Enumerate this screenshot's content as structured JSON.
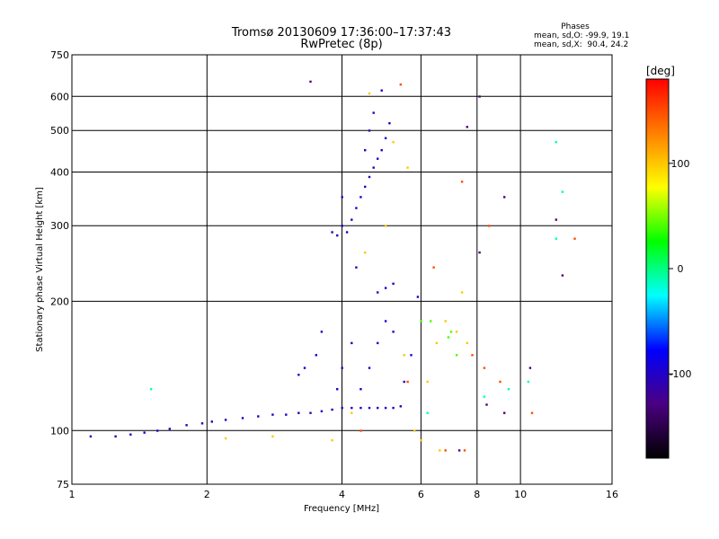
{
  "chart_data": {
    "type": "scatter",
    "title": "Tromsø 20130609 17:36:00–17:37:43",
    "subtitle": "RwPretec (8p)",
    "xlabel": "Frequency [MHz]",
    "ylabel": "Stationary phase Virtual Height [km]",
    "x_scale": "log",
    "y_scale": "log",
    "xlim": [
      1,
      16
    ],
    "ylim": [
      75,
      750
    ],
    "x_ticks": [
      1,
      2,
      4,
      6,
      8,
      10,
      16
    ],
    "y_ticks": [
      75,
      100,
      200,
      300,
      400,
      500,
      600,
      750
    ],
    "grid": true,
    "phases_box": {
      "title": "Phases",
      "line_o": "mean, sd,O: -99.9, 19.1",
      "line_x": "mean, sd,X:  90.4, 24.2"
    },
    "colorbar": {
      "label": "[deg]",
      "range": [
        -180,
        180
      ],
      "ticks": [
        100,
        0,
        -100
      ],
      "colors": [
        "#000000",
        "#4b0082",
        "#0000ff",
        "#00ffff",
        "#00ff00",
        "#ffff00",
        "#ff8000",
        "#ff0000"
      ]
    },
    "series": [
      {
        "phase_deg": -100,
        "points": [
          [
            1.1,
            97
          ],
          [
            1.25,
            97
          ],
          [
            1.35,
            98
          ],
          [
            1.45,
            99
          ],
          [
            1.55,
            100
          ],
          [
            1.65,
            101
          ],
          [
            1.8,
            103
          ],
          [
            1.95,
            104
          ],
          [
            2.05,
            105
          ],
          [
            2.2,
            106
          ],
          [
            2.4,
            107
          ],
          [
            2.6,
            108
          ],
          [
            2.8,
            109
          ],
          [
            3.0,
            109
          ],
          [
            3.2,
            110
          ],
          [
            3.4,
            110
          ],
          [
            3.6,
            111
          ],
          [
            3.8,
            112
          ],
          [
            4.0,
            113
          ],
          [
            4.2,
            113
          ],
          [
            4.4,
            113
          ],
          [
            4.6,
            113
          ],
          [
            4.8,
            113
          ],
          [
            5.0,
            113
          ],
          [
            5.2,
            113
          ],
          [
            5.4,
            114
          ],
          [
            3.2,
            135
          ],
          [
            3.3,
            140
          ],
          [
            3.5,
            150
          ],
          [
            3.6,
            170
          ],
          [
            3.9,
            125
          ],
          [
            4.0,
            140
          ],
          [
            4.2,
            160
          ],
          [
            4.4,
            125
          ],
          [
            4.6,
            140
          ],
          [
            4.8,
            160
          ],
          [
            5.0,
            180
          ],
          [
            5.2,
            170
          ],
          [
            5.5,
            130
          ],
          [
            5.7,
            150
          ],
          [
            3.8,
            290
          ],
          [
            3.9,
            285
          ],
          [
            4.0,
            300
          ],
          [
            4.1,
            290
          ],
          [
            4.2,
            310
          ],
          [
            4.3,
            330
          ],
          [
            4.4,
            350
          ],
          [
            4.5,
            370
          ],
          [
            4.6,
            390
          ],
          [
            4.7,
            410
          ],
          [
            4.8,
            430
          ],
          [
            4.9,
            450
          ],
          [
            5.0,
            480
          ],
          [
            5.1,
            520
          ],
          [
            4.0,
            350
          ],
          [
            4.5,
            450
          ],
          [
            4.8,
            210
          ],
          [
            5.0,
            215
          ],
          [
            4.3,
            240
          ],
          [
            4.9,
            620
          ],
          [
            4.7,
            550
          ],
          [
            4.6,
            500
          ],
          [
            5.2,
            220
          ],
          [
            5.9,
            205
          ]
        ]
      },
      {
        "phase_deg": 100,
        "points": [
          [
            4.6,
            610
          ],
          [
            5.2,
            470
          ],
          [
            5.6,
            410
          ],
          [
            4.5,
            260
          ],
          [
            5.0,
            300
          ],
          [
            5.5,
            150
          ],
          [
            6.2,
            130
          ],
          [
            6.5,
            160
          ],
          [
            6.8,
            180
          ],
          [
            7.2,
            170
          ],
          [
            7.6,
            160
          ],
          [
            7.4,
            210
          ],
          [
            6.0,
            95
          ],
          [
            6.6,
            90
          ],
          [
            3.8,
            95
          ],
          [
            5.8,
            100
          ],
          [
            4.2,
            110
          ],
          [
            2.2,
            96
          ],
          [
            2.8,
            97
          ]
        ]
      },
      {
        "phase_deg": 40,
        "points": [
          [
            6.3,
            180
          ],
          [
            7.0,
            170
          ],
          [
            7.2,
            150
          ],
          [
            6.9,
            165
          ],
          [
            6.0,
            180
          ]
        ]
      },
      {
        "phase_deg": 150,
        "points": [
          [
            6.4,
            240
          ],
          [
            7.8,
            150
          ],
          [
            8.3,
            140
          ],
          [
            9.0,
            130
          ],
          [
            10.6,
            110
          ],
          [
            7.5,
            90
          ],
          [
            8.5,
            300
          ],
          [
            13.2,
            280
          ],
          [
            6.8,
            90
          ],
          [
            7.4,
            380
          ],
          [
            5.6,
            130
          ],
          [
            4.4,
            100
          ],
          [
            5.4,
            640
          ]
        ]
      },
      {
        "phase_deg": -10,
        "points": [
          [
            12.0,
            470
          ],
          [
            12.4,
            360
          ],
          [
            12.0,
            280
          ],
          [
            8.3,
            120
          ],
          [
            6.2,
            110
          ],
          [
            1.5,
            125
          ],
          [
            9.4,
            125
          ],
          [
            10.4,
            130
          ]
        ]
      },
      {
        "phase_deg": -130,
        "points": [
          [
            3.4,
            650
          ],
          [
            7.6,
            510
          ],
          [
            8.1,
            600
          ],
          [
            9.2,
            350
          ],
          [
            8.1,
            260
          ],
          [
            12.0,
            310
          ],
          [
            12.4,
            230
          ],
          [
            10.5,
            140
          ],
          [
            8.4,
            115
          ],
          [
            9.2,
            110
          ],
          [
            7.3,
            90
          ]
        ]
      }
    ]
  }
}
